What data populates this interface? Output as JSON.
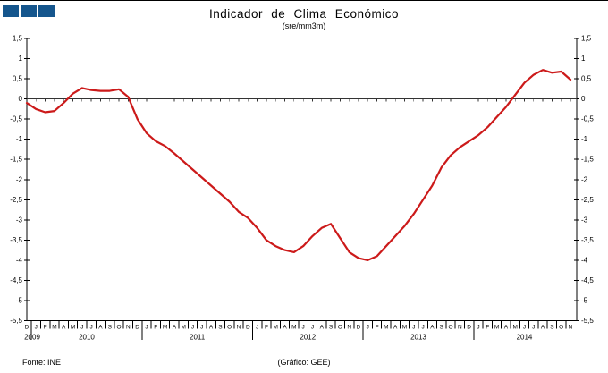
{
  "logo": {
    "squares": [
      "#15568d",
      "#15568d",
      "#15568d"
    ]
  },
  "header": {
    "title": "Indicador de Clima Económico",
    "subtitle": "(sre/mm3m)"
  },
  "footer": {
    "source": "Fonte:  INE",
    "credit": "(Gráfico:  GEE)"
  },
  "chart_data": {
    "type": "line",
    "title": "Indicador de Clima Económico",
    "subtitle": "(sre/mm3m)",
    "ylim": [
      -5.5,
      1.5
    ],
    "ytick_step": 0.5,
    "ytick_labels": [
      "1,5",
      "1",
      "0,5",
      "0",
      "-0,5",
      "-1",
      "-1,5",
      "-2",
      "-2,5",
      "-3",
      "-3,5",
      "-4",
      "-4,5",
      "-5",
      "-5,5"
    ],
    "grid": false,
    "zero_line": true,
    "legend": "none",
    "line_color": "#cc1a1a",
    "axis_color": "#000000",
    "x_month_labels": [
      "D",
      "J",
      "F",
      "M",
      "A",
      "M",
      "J",
      "J",
      "A",
      "S",
      "O",
      "N",
      "D",
      "J",
      "F",
      "M",
      "A",
      "M",
      "J",
      "J",
      "A",
      "S",
      "O",
      "N",
      "D",
      "J",
      "F",
      "M",
      "A",
      "M",
      "J",
      "J",
      "A",
      "S",
      "O",
      "N",
      "D",
      "J",
      "F",
      "M",
      "A",
      "M",
      "J",
      "J",
      "A",
      "S",
      "O",
      "N",
      "D",
      "J",
      "F",
      "M",
      "A",
      "M",
      "J",
      "J",
      "A",
      "S",
      "O",
      "N"
    ],
    "years": [
      {
        "label": "2009",
        "months": 1
      },
      {
        "label": "2010",
        "months": 12
      },
      {
        "label": "2011",
        "months": 12
      },
      {
        "label": "2012",
        "months": 12
      },
      {
        "label": "2013",
        "months": 12
      },
      {
        "label": "2014",
        "months": 11
      }
    ],
    "series": [
      {
        "name": "Indicador de Clima Económico",
        "start": "Dez 2009",
        "end": "Nov 2014",
        "values": [
          -0.1,
          -0.25,
          -0.33,
          -0.3,
          -0.1,
          0.13,
          0.27,
          0.22,
          0.2,
          0.2,
          0.24,
          0.05,
          -0.5,
          -0.85,
          -1.05,
          -1.17,
          -1.35,
          -1.55,
          -1.75,
          -1.95,
          -2.15,
          -2.35,
          -2.55,
          -2.8,
          -2.95,
          -3.2,
          -3.5,
          -3.65,
          -3.75,
          -3.8,
          -3.65,
          -3.4,
          -3.2,
          -3.1,
          -3.45,
          -3.8,
          -3.95,
          -4.0,
          -3.9,
          -3.65,
          -3.4,
          -3.15,
          -2.85,
          -2.5,
          -2.15,
          -1.7,
          -1.4,
          -1.2,
          -1.05,
          -0.9,
          -0.7,
          -0.45,
          -0.2,
          0.1,
          0.4,
          0.6,
          0.72,
          0.65,
          0.68,
          0.48
        ]
      }
    ]
  }
}
